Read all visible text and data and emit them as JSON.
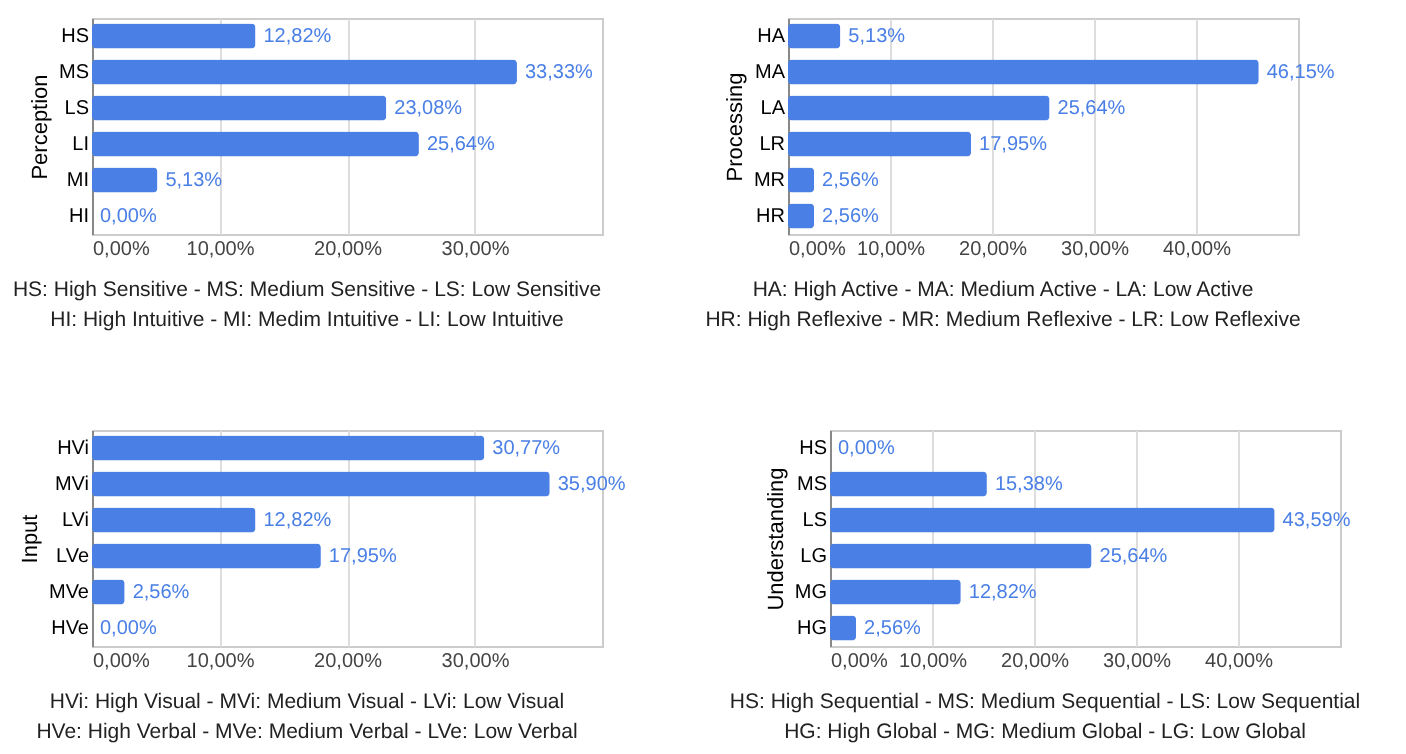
{
  "chart_data": [
    {
      "type": "bar",
      "orientation": "horizontal",
      "ylabel": "Perception",
      "categories": [
        "HS",
        "MS",
        "LS",
        "LI",
        "MI",
        "HI"
      ],
      "values": [
        12.82,
        33.33,
        23.08,
        25.64,
        5.13,
        0.0
      ],
      "value_labels": [
        "12,82%",
        "33,33%",
        "23,08%",
        "25,64%",
        "5,13%",
        "0,00%"
      ],
      "color": "#4a7fe6",
      "xlim": [
        0,
        40
      ],
      "xticks": [
        {
          "value": 0,
          "label": "0,00%"
        },
        {
          "value": 10,
          "label": "10,00%"
        },
        {
          "value": 20,
          "label": "20,00%"
        },
        {
          "value": 30,
          "label": "30,00%"
        }
      ],
      "grid": "x",
      "annotations": [
        "HS: High Sensitive - MS: Medium Sensitive - LS: Low Sensitive",
        "HI: High Intuitive - MI: Medim Intuitive - LI: Low Intuitive"
      ]
    },
    {
      "type": "bar",
      "orientation": "horizontal",
      "ylabel": "Processing",
      "categories": [
        "HA",
        "MA",
        "LA",
        "LR",
        "MR",
        "HR"
      ],
      "values": [
        5.13,
        46.15,
        25.64,
        17.95,
        2.56,
        2.56
      ],
      "value_labels": [
        "5,13%",
        "46,15%",
        "25,64%",
        "17,95%",
        "2,56%",
        "2,56%"
      ],
      "color": "#4a7fe6",
      "xlim": [
        0,
        50
      ],
      "xticks": [
        {
          "value": 0,
          "label": "0,00%"
        },
        {
          "value": 10,
          "label": "10,00%"
        },
        {
          "value": 20,
          "label": "20,00%"
        },
        {
          "value": 30,
          "label": "30,00%"
        },
        {
          "value": 40,
          "label": "40,00%"
        }
      ],
      "grid": "x",
      "annotations": [
        "HA: High Active - MA: Medium Active - LA: Low Active",
        "HR: High Reflexive - MR: Medium Reflexive - LR: Low Reflexive"
      ]
    },
    {
      "type": "bar",
      "orientation": "horizontal",
      "ylabel": "Input",
      "categories": [
        "HVi",
        "MVi",
        "LVi",
        "LVe",
        "MVe",
        "HVe"
      ],
      "values": [
        30.77,
        35.9,
        12.82,
        17.95,
        2.56,
        0.0
      ],
      "value_labels": [
        "30,77%",
        "35,90%",
        "12,82%",
        "17,95%",
        "2,56%",
        "0,00%"
      ],
      "color": "#4a7fe6",
      "xlim": [
        0,
        40
      ],
      "xticks": [
        {
          "value": 0,
          "label": "0,00%"
        },
        {
          "value": 10,
          "label": "10,00%"
        },
        {
          "value": 20,
          "label": "20,00%"
        },
        {
          "value": 30,
          "label": "30,00%"
        }
      ],
      "grid": "x",
      "annotations": [
        "HVi: High Visual - MVi: Medium Visual - LVi: Low Visual",
        "HVe: High Verbal - MVe: Medium Verbal - LVe: Low Verbal"
      ]
    },
    {
      "type": "bar",
      "orientation": "horizontal",
      "ylabel": "Understanding",
      "categories": [
        "HS",
        "MS",
        "LS",
        "LG",
        "MG",
        "HG"
      ],
      "values": [
        0.0,
        15.38,
        43.59,
        25.64,
        12.82,
        2.56
      ],
      "value_labels": [
        "0,00%",
        "15,38%",
        "43,59%",
        "25,64%",
        "12,82%",
        "2,56%"
      ],
      "color": "#4a7fe6",
      "xlim": [
        0,
        50
      ],
      "xticks": [
        {
          "value": 0,
          "label": "0,00%"
        },
        {
          "value": 10,
          "label": "10,00%"
        },
        {
          "value": 20,
          "label": "20,00%"
        },
        {
          "value": 30,
          "label": "30,00%"
        },
        {
          "value": 40,
          "label": "40,00%"
        }
      ],
      "grid": "x",
      "annotations": [
        "HS: High Sequential - MS: Medium Sequential - LS: Low Sequential",
        "HG: High Global - MG: Medium Global - LG: Low Global"
      ]
    }
  ]
}
